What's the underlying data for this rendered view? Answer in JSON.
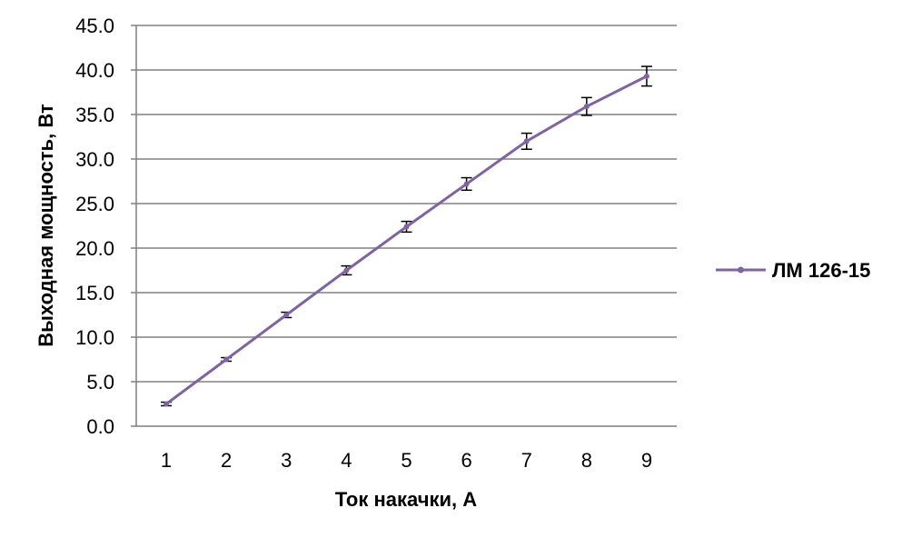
{
  "chart_data": {
    "type": "line",
    "title": "",
    "xlabel": "Ток накачки, А",
    "ylabel": "Выходная мощность, Вт",
    "categories": [
      "1",
      "2",
      "3",
      "4",
      "5",
      "6",
      "7",
      "8",
      "9"
    ],
    "y_ticks": [
      "0.0",
      "5.0",
      "10.0",
      "15.0",
      "20.0",
      "25.0",
      "30.0",
      "35.0",
      "40.0",
      "45.0"
    ],
    "ylim": [
      0,
      45
    ],
    "grid": true,
    "legend_position": "right",
    "series": [
      {
        "name": "ЛМ 126-15",
        "color": "#8064a2",
        "values": [
          2.5,
          7.5,
          12.5,
          17.5,
          22.4,
          27.2,
          32.0,
          35.9,
          39.3
        ],
        "error_bars": [
          0.2,
          0.2,
          0.3,
          0.5,
          0.6,
          0.7,
          0.9,
          1.0,
          1.1
        ]
      }
    ]
  }
}
